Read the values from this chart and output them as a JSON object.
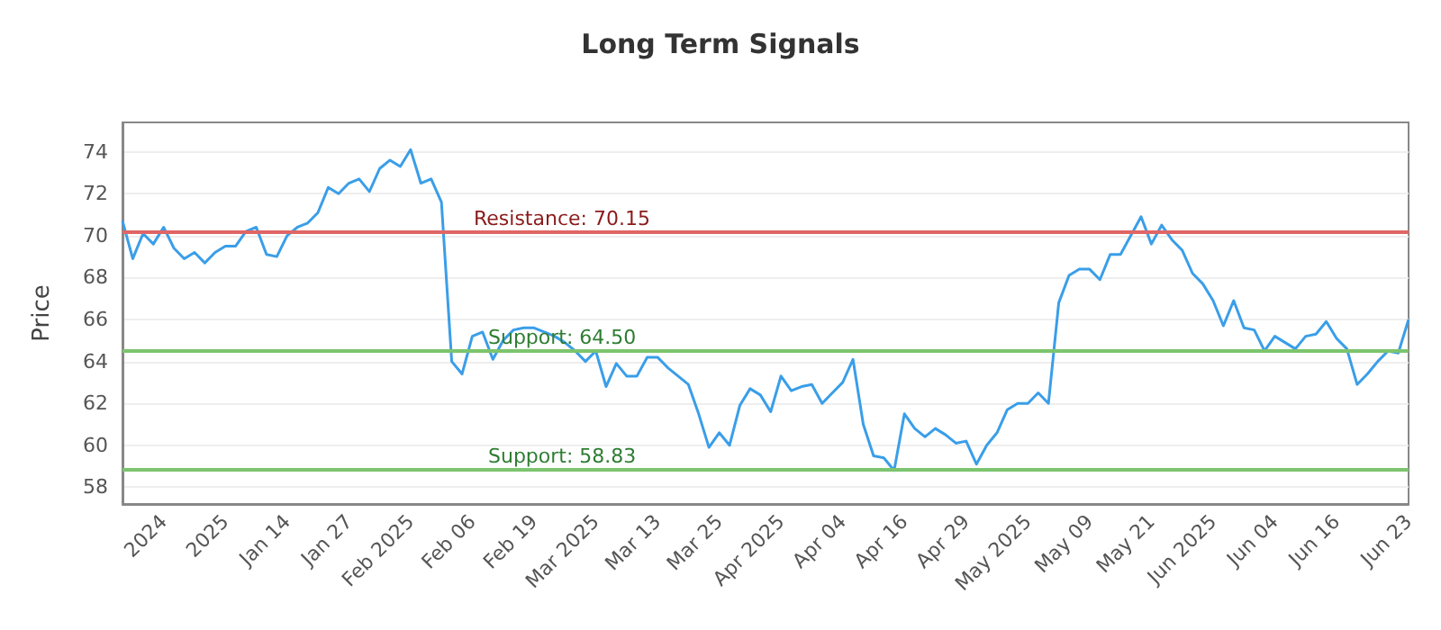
{
  "chart_data": {
    "type": "line",
    "title": "Long Term Signals",
    "ylabel": "Price",
    "categories": [
      null,
      null,
      null,
      null,
      "2024",
      null,
      null,
      null,
      null,
      null,
      "2025",
      null,
      null,
      null,
      null,
      null,
      "Jan 14",
      null,
      null,
      null,
      null,
      null,
      "Jan 27",
      null,
      null,
      null,
      null,
      null,
      "Feb 2025",
      null,
      null,
      null,
      null,
      null,
      "Feb 06",
      null,
      null,
      null,
      null,
      null,
      "Feb 19",
      null,
      null,
      null,
      null,
      null,
      "Mar 2025",
      null,
      null,
      null,
      null,
      null,
      "Mar 13",
      null,
      null,
      null,
      null,
      null,
      "Mar 25",
      null,
      null,
      null,
      null,
      null,
      "Apr 2025",
      null,
      null,
      null,
      null,
      null,
      "Apr 04",
      null,
      null,
      null,
      null,
      null,
      "Apr 16",
      null,
      null,
      null,
      null,
      null,
      "Apr 29",
      null,
      null,
      null,
      null,
      null,
      "May 2025",
      null,
      null,
      null,
      null,
      null,
      "May 09",
      null,
      null,
      null,
      null,
      null,
      "May 21",
      null,
      null,
      null,
      null,
      null,
      "Jun 2025",
      null,
      null,
      null,
      null,
      null,
      "Jun 04",
      null,
      null,
      null,
      null,
      null,
      "Jun 16",
      null,
      null,
      null,
      null,
      null,
      null,
      "Jun 23"
    ],
    "series": [
      {
        "color": "#3a9ee8",
        "values": [
          70.7,
          68.9,
          70.1,
          69.6,
          70.4,
          69.4,
          68.9,
          69.2,
          68.7,
          69.2,
          69.5,
          69.5,
          70.2,
          70.4,
          69.1,
          69.0,
          70.0,
          70.4,
          70.6,
          71.1,
          72.3,
          72.0,
          72.5,
          72.7,
          72.1,
          73.2,
          73.6,
          73.3,
          74.1,
          72.5,
          72.7,
          71.6,
          64.0,
          63.4,
          65.2,
          65.4,
          64.1,
          65.0,
          65.5,
          65.6,
          65.6,
          65.4,
          65.2,
          64.9,
          64.5,
          64.0,
          64.5,
          62.8,
          63.9,
          63.3,
          63.3,
          64.2,
          64.2,
          63.7,
          63.3,
          62.9,
          61.5,
          59.9,
          60.6,
          60.0,
          61.9,
          62.7,
          62.4,
          61.6,
          63.3,
          62.6,
          62.8,
          62.9,
          62.0,
          62.5,
          63.0,
          64.1,
          61.0,
          59.5,
          59.4,
          58.8,
          61.5,
          60.8,
          60.4,
          60.8,
          60.5,
          60.1,
          60.2,
          59.1,
          60.0,
          60.6,
          61.7,
          62.0,
          62.0,
          62.5,
          62.0,
          66.8,
          68.1,
          68.4,
          68.4,
          67.9,
          69.1,
          69.1,
          70.0,
          70.9,
          69.6,
          70.5,
          69.8,
          69.3,
          68.2,
          67.7,
          66.9,
          65.7,
          66.9,
          65.6,
          65.5,
          64.5,
          65.2,
          64.9,
          64.6,
          65.2,
          65.3,
          65.9,
          65.1,
          64.6,
          62.9,
          63.4,
          64.0,
          64.5,
          64.4,
          66.0
        ]
      }
    ],
    "ylim": [
      57.2,
      75.4
    ],
    "yticks": [
      58,
      60,
      62,
      64,
      66,
      68,
      70,
      72,
      74
    ],
    "ref_lines": [
      {
        "axis": "y",
        "value": 70.15,
        "label": "Resistance: 70.15",
        "color": "#e06666"
      },
      {
        "axis": "y",
        "value": 64.5,
        "label": "Support: 64.50",
        "color": "#7cc46e"
      },
      {
        "axis": "y",
        "value": 58.83,
        "label": "Support: 58.83",
        "color": "#7cc46e"
      }
    ],
    "grid": "y",
    "marker": "none",
    "line_style": "solid"
  }
}
